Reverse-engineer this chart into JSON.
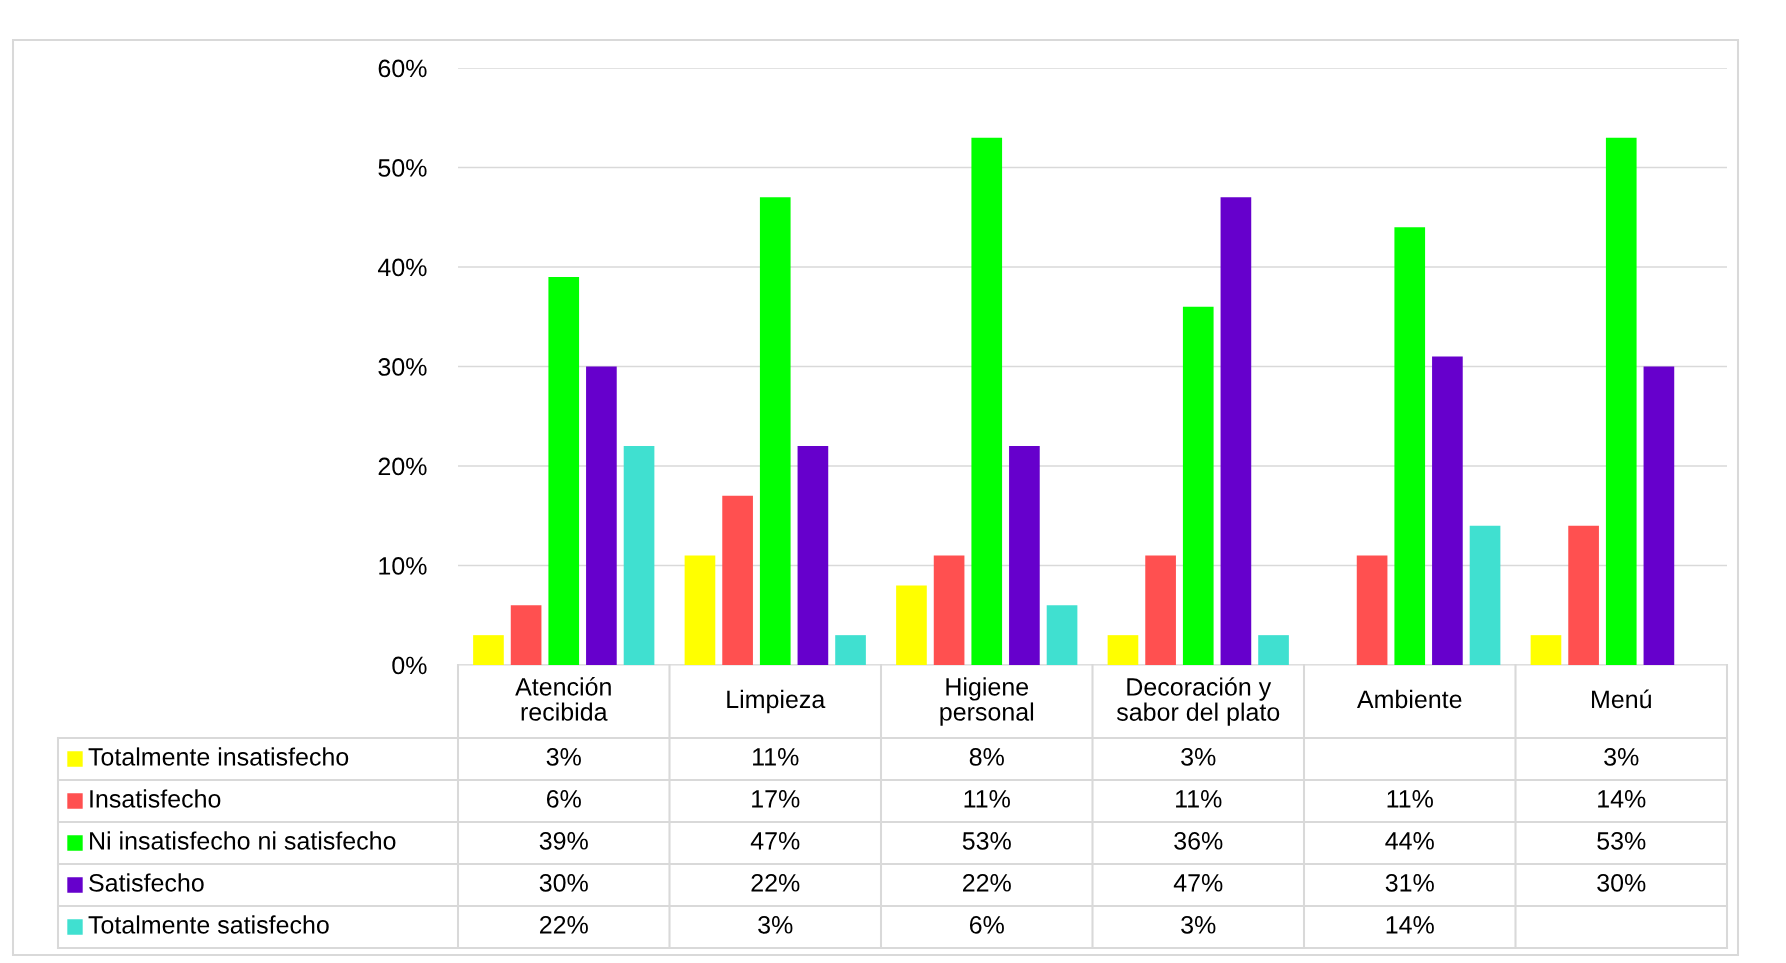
{
  "chart_data": {
    "type": "bar",
    "categories": [
      "Atención\nrecibida",
      "Limpieza",
      "Higiene\npersonal",
      "Decoración y\nsabor del plato",
      "Ambiente",
      "Menú"
    ],
    "series": [
      {
        "name": "Totalmente insatisfecho",
        "color": "#ffff00",
        "values": [
          3,
          11,
          8,
          3,
          null,
          3
        ],
        "value_labels": [
          "3%",
          "11%",
          "8%",
          "3%",
          null,
          "3%"
        ]
      },
      {
        "name": "Insatisfecho",
        "color": "#ff5050",
        "values": [
          6,
          17,
          11,
          11,
          11,
          14
        ],
        "value_labels": [
          "6%",
          "17%",
          "11%",
          "11%",
          "11%",
          "14%"
        ]
      },
      {
        "name": "Ni insatisfecho ni satisfecho",
        "color": "#00ff00",
        "values": [
          39,
          47,
          53,
          36,
          44,
          53
        ],
        "value_labels": [
          "39%",
          "47%",
          "53%",
          "36%",
          "44%",
          "53%"
        ]
      },
      {
        "name": "Satisfecho",
        "color": "#6600cc",
        "values": [
          30,
          22,
          22,
          47,
          31,
          30
        ],
        "value_labels": [
          "30%",
          "22%",
          "22%",
          "47%",
          "31%",
          "30%"
        ]
      },
      {
        "name": "Totalmente satisfecho",
        "color": "#40e0d0",
        "values": [
          22,
          3,
          6,
          3,
          14,
          null
        ],
        "value_labels": [
          "22%",
          "3%",
          "6%",
          "3%",
          "14%",
          null
        ]
      }
    ],
    "ylim": [
      0,
      60
    ],
    "yticks": [
      {
        "value": 0,
        "label": "0%"
      },
      {
        "value": 10,
        "label": "10%"
      },
      {
        "value": 20,
        "label": "20%"
      },
      {
        "value": 30,
        "label": "30%"
      },
      {
        "value": 40,
        "label": "40%"
      },
      {
        "value": 50,
        "label": "50%"
      },
      {
        "value": 60,
        "label": "60%"
      }
    ],
    "grid": "y",
    "legend": "bottom"
  }
}
